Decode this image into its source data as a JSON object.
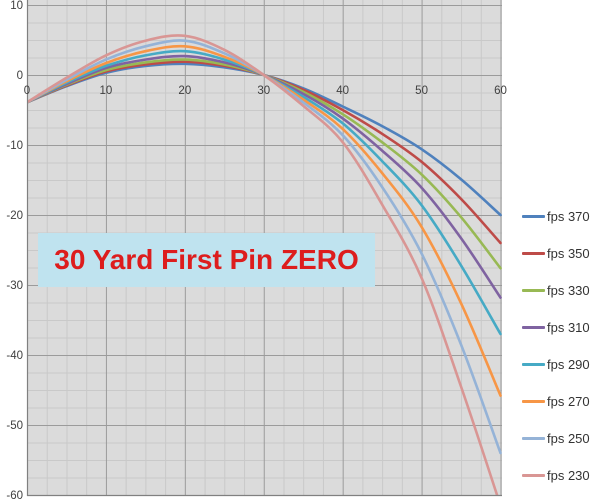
{
  "chart_data": {
    "type": "line",
    "title": "",
    "xlabel": "",
    "ylabel": "",
    "xlim": [
      0,
      60
    ],
    "ylim": [
      -60,
      10.7
    ],
    "x_ticks": [
      0,
      10,
      20,
      30,
      40,
      50,
      60
    ],
    "y_ticks": [
      10,
      0,
      -10,
      -20,
      -30,
      -40,
      -50,
      -60
    ],
    "minor_step_x": 2.5,
    "minor_step_y": 2.5,
    "grid": "on",
    "legend_position": "right",
    "x": [
      0,
      5,
      10,
      15,
      20,
      25,
      30,
      35,
      40,
      45,
      50,
      55,
      60
    ],
    "series": [
      {
        "name": "fps 370",
        "color": "#4F81BD",
        "values": [
          -3.9,
          -1.6,
          0.3,
          1.3,
          1.6,
          1.1,
          0,
          -1.9,
          -4.5,
          -7.3,
          -10.6,
          -14.9,
          -20.0
        ]
      },
      {
        "name": "fps 350",
        "color": "#BE4B48",
        "values": [
          -3.9,
          -1.5,
          0.5,
          1.5,
          1.9,
          1.3,
          0,
          -2.1,
          -5.0,
          -8.4,
          -12.4,
          -17.7,
          -24.0
        ]
      },
      {
        "name": "fps 330",
        "color": "#98B954",
        "values": [
          -3.9,
          -1.4,
          0.7,
          1.8,
          2.2,
          1.5,
          0,
          -2.4,
          -5.6,
          -9.6,
          -14.2,
          -20.3,
          -27.6
        ]
      },
      {
        "name": "fps 310",
        "color": "#7F63A1",
        "values": [
          -3.9,
          -1.3,
          1.0,
          2.2,
          2.7,
          1.8,
          0,
          -2.7,
          -6.2,
          -10.8,
          -16.1,
          -23.3,
          -31.8
        ]
      },
      {
        "name": "fps 290",
        "color": "#46AAC5",
        "values": [
          -3.9,
          -1.1,
          1.3,
          2.8,
          3.4,
          2.2,
          0,
          -3.1,
          -6.9,
          -12.3,
          -18.6,
          -27.2,
          -37.0
        ]
      },
      {
        "name": "fps 270",
        "color": "#F79646",
        "values": [
          -3.9,
          -0.9,
          1.7,
          3.4,
          4.1,
          2.6,
          0,
          -3.5,
          -7.7,
          -14.0,
          -21.7,
          -32.6,
          -45.8
        ]
      },
      {
        "name": "fps 250",
        "color": "#95B3D7",
        "values": [
          -3.9,
          -0.7,
          2.2,
          4.1,
          4.9,
          3.1,
          0,
          -3.9,
          -8.6,
          -16.0,
          -25.5,
          -38.5,
          -54.0
        ]
      },
      {
        "name": "fps 230",
        "color": "#D99694",
        "values": [
          -3.9,
          -0.4,
          2.8,
          4.9,
          5.6,
          3.6,
          0,
          -4.4,
          -9.6,
          -18.5,
          -29.0,
          -44.5,
          -61.5
        ]
      }
    ]
  },
  "annotation": {
    "text": "30 Yard First Pin ZERO",
    "bg_color": "#BFE3EF",
    "text_color": "#DD1D1D"
  },
  "style_colors": {
    "plot_bg": "#DBDBDB",
    "grid_minor": "#C9C9C9",
    "grid_major": "#9B9B9B",
    "axis_line": "#808080",
    "tick_text": "#404040"
  }
}
